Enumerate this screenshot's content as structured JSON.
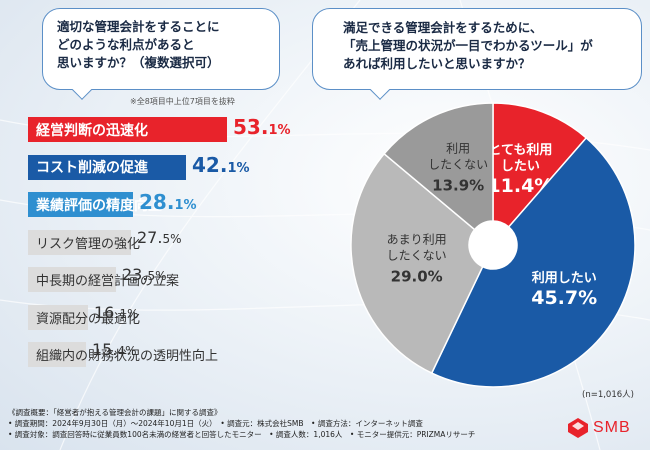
{
  "left_question": {
    "lines": [
      "適切な管理会計をすることに",
      "どのような利点があると",
      "思いますか？（複数選択可）"
    ]
  },
  "right_question": {
    "lines": [
      "満足できる管理会計をするために、",
      "「売上管理の状況が一目でわかるツール」が",
      "あれば利用したいと思いますか？"
    ]
  },
  "note_top8": "※全8項目中上位7項目を抜粋",
  "sample_note": "(n=1,016人)",
  "footer": {
    "lines": [
      "《調査概要：「経営者が抱える管理会計の課題」に関する調査》",
      "• 調査期間：2024年9月30日（月）～2024年10月1日（火）　• 調査元：株式会社SMB　• 調査方法：インターネット調査",
      "• 調査対象：調査回答時に従業員数100名未満の経営者と回答したモニター　• 調査人数：1,016人　• モニター提供元：PRIZMAリサーチ"
    ]
  },
  "logo": {
    "text": "SMB"
  },
  "colors": {
    "red": "#e8232b",
    "blue": "#1a5aa6",
    "light_blue": "#2f8fd0",
    "gray_dark": "#9a9a9a",
    "gray_mid": "#b9b9b9"
  },
  "chart_data": [
    {
      "type": "bar",
      "orientation": "horizontal",
      "title": "適切な管理会計をすることにどのような利点があると思いますか？（複数選択可）",
      "categories": [
        "経営判断の迅速化",
        "コスト削減の促進",
        "業績評価の精度向上",
        "リスク管理の強化",
        "中長期の経営計画の立案",
        "資源配分の最適化",
        "組織内の財務状況の透明性向上"
      ],
      "values": [
        53.1,
        42.1,
        28.1,
        27.5,
        23.5,
        16.1,
        15.4
      ],
      "labels_main": [
        "53.",
        "42.",
        "28.",
        "27.",
        "23.",
        "16.",
        "15."
      ],
      "labels_tail": [
        "1%",
        "1%",
        "1%",
        "5%",
        "5%",
        "1%",
        "4%"
      ],
      "styles": [
        "red",
        "blue",
        "lblue",
        "gray",
        "gray",
        "gray",
        "gray"
      ],
      "unit": "%"
    },
    {
      "type": "pie",
      "title": "「売上管理の状況が一目でわかるツール」があれば利用したいと思いますか？",
      "slices": [
        {
          "name": "とても利用したい",
          "label_lines": [
            "とても利用",
            "したい"
          ],
          "value": 11.4,
          "value_label": "11.4%",
          "color": "#e8232b"
        },
        {
          "name": "利用したい",
          "label_lines": [
            "利用したい"
          ],
          "value": 45.7,
          "value_label": "45.7%",
          "color": "#1a5aa6"
        },
        {
          "name": "あまり利用したくない",
          "label_lines": [
            "あまり利用",
            "したくない"
          ],
          "value": 29.0,
          "value_label": "29.0%",
          "color": "#b9b9b9"
        },
        {
          "name": "利用したくない",
          "label_lines": [
            "利用",
            "したくない"
          ],
          "value": 13.9,
          "value_label": "13.9%",
          "color": "#9a9a9a"
        }
      ],
      "n": "n=1,016人"
    }
  ]
}
